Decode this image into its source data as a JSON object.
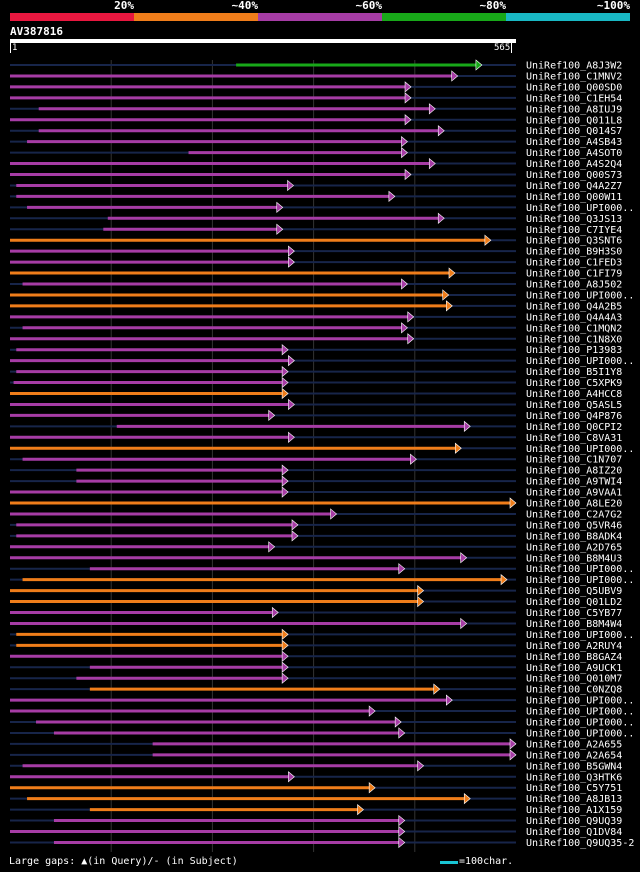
{
  "legend": {
    "items": [
      {
        "label": "20%",
        "color": "#e8173f"
      },
      {
        "label": "~40%",
        "color": "#ef7d1a"
      },
      {
        "label": "~60%",
        "color": "#a63ca5"
      },
      {
        "label": "~80%",
        "color": "#18a819"
      },
      {
        "label": "~100%",
        "color": "#19b8c4"
      }
    ]
  },
  "query": {
    "name": "AV387816",
    "start": "1",
    "end": "565"
  },
  "footer": {
    "gaps_text": "Large gaps: ▲(in Query)/- (in Subject)",
    "scale_text": "=100char."
  },
  "chart_data": {
    "type": "alignment-overview",
    "query_length": 565,
    "hits": [
      {
        "name": "UniRef100_A8J3W2",
        "color": "#18a819",
        "start": 253,
        "end": 527
      },
      {
        "name": "UniRef100_C1MNV2",
        "color": "#a63ca5",
        "start": 1,
        "end": 500
      },
      {
        "name": "UniRef100_Q00SD0",
        "color": "#a63ca5",
        "start": 1,
        "end": 448
      },
      {
        "name": "UniRef100_C1EH54",
        "color": "#a63ca5",
        "start": 1,
        "end": 448
      },
      {
        "name": "UniRef100_A8IUJ9",
        "color": "#a63ca5",
        "start": 33,
        "end": 475
      },
      {
        "name": "UniRef100_Q011L8",
        "color": "#a63ca5",
        "start": 1,
        "end": 448
      },
      {
        "name": "UniRef100_Q014S7",
        "color": "#a63ca5",
        "start": 33,
        "end": 485
      },
      {
        "name": "UniRef100_A4SB43",
        "color": "#a63ca5",
        "start": 20,
        "end": 444
      },
      {
        "name": "UniRef100_A4SOT0",
        "color": "#a63ca5",
        "start": 200,
        "end": 444
      },
      {
        "name": "UniRef100_A4S2Q4",
        "color": "#a63ca5",
        "start": 1,
        "end": 475
      },
      {
        "name": "UniRef100_Q00S73",
        "color": "#a63ca5",
        "start": 1,
        "end": 448
      },
      {
        "name": "UniRef100_Q4A2Z7",
        "color": "#a63ca5",
        "start": 8,
        "end": 317
      },
      {
        "name": "UniRef100_Q00W11",
        "color": "#a63ca5",
        "start": 8,
        "end": 430
      },
      {
        "name": "UniRef100_UPI000..",
        "color": "#a63ca5",
        "start": 20,
        "end": 305
      },
      {
        "name": "UniRef100_Q3JS13",
        "color": "#a63ca5",
        "start": 110,
        "end": 485
      },
      {
        "name": "UniRef100_C7IYE4",
        "color": "#a63ca5",
        "start": 105,
        "end": 305
      },
      {
        "name": "UniRef100_Q3SNT6",
        "color": "#ef7d1a",
        "start": 1,
        "end": 537
      },
      {
        "name": "UniRef100_B9H3S0",
        "color": "#a63ca5",
        "start": 1,
        "end": 318
      },
      {
        "name": "UniRef100_C1FED3",
        "color": "#a63ca5",
        "start": 1,
        "end": 318
      },
      {
        "name": "UniRef100_C1FI79",
        "color": "#ef7d1a",
        "start": 1,
        "end": 497
      },
      {
        "name": "UniRef100_A8J502",
        "color": "#a63ca5",
        "start": 15,
        "end": 444
      },
      {
        "name": "UniRef100_UPI000..",
        "color": "#ef7d1a",
        "start": 1,
        "end": 490
      },
      {
        "name": "UniRef100_Q4A2B5",
        "color": "#ef7d1a",
        "start": 1,
        "end": 494
      },
      {
        "name": "UniRef100_Q4A4A3",
        "color": "#a63ca5",
        "start": 1,
        "end": 451
      },
      {
        "name": "UniRef100_C1MQN2",
        "color": "#a63ca5",
        "start": 15,
        "end": 444
      },
      {
        "name": "UniRef100_C1N8X0",
        "color": "#a63ca5",
        "start": 1,
        "end": 451
      },
      {
        "name": "UniRef100_P13983",
        "color": "#a63ca5",
        "start": 8,
        "end": 311
      },
      {
        "name": "UniRef100_UPI000..",
        "color": "#a63ca5",
        "start": 1,
        "end": 318
      },
      {
        "name": "UniRef100_B5I1Y8",
        "color": "#a63ca5",
        "start": 8,
        "end": 311
      },
      {
        "name": "UniRef100_C5XPK9",
        "color": "#a63ca5",
        "start": 5,
        "end": 311
      },
      {
        "name": "UniRef100_A4HCC8",
        "color": "#ef7d1a",
        "start": 1,
        "end": 311
      },
      {
        "name": "UniRef100_Q5ASL5",
        "color": "#a63ca5",
        "start": 1,
        "end": 318
      },
      {
        "name": "UniRef100_Q4P876",
        "color": "#a63ca5",
        "start": 1,
        "end": 296
      },
      {
        "name": "UniRef100_Q0CPI2",
        "color": "#a63ca5",
        "start": 120,
        "end": 514
      },
      {
        "name": "UniRef100_C8VA31",
        "color": "#a63ca5",
        "start": 1,
        "end": 318
      },
      {
        "name": "UniRef100_UPI000..",
        "color": "#ef7d1a",
        "start": 1,
        "end": 504
      },
      {
        "name": "UniRef100_C1N707",
        "color": "#a63ca5",
        "start": 15,
        "end": 454
      },
      {
        "name": "UniRef100_A8IZ20",
        "color": "#a63ca5",
        "start": 75,
        "end": 311
      },
      {
        "name": "UniRef100_A9TWI4",
        "color": "#a63ca5",
        "start": 75,
        "end": 311
      },
      {
        "name": "UniRef100_A9VAA1",
        "color": "#a63ca5",
        "start": 1,
        "end": 311
      },
      {
        "name": "UniRef100_A8LE20",
        "color": "#ef7d1a",
        "start": 1,
        "end": 565
      },
      {
        "name": "UniRef100_C2A7G2",
        "color": "#a63ca5",
        "start": 1,
        "end": 365
      },
      {
        "name": "UniRef100_Q5VR46",
        "color": "#a63ca5",
        "start": 8,
        "end": 322
      },
      {
        "name": "UniRef100_B8ADK4",
        "color": "#a63ca5",
        "start": 8,
        "end": 322
      },
      {
        "name": "UniRef100_A2D765",
        "color": "#a63ca5",
        "start": 1,
        "end": 296
      },
      {
        "name": "UniRef100_B8M4U3",
        "color": "#a63ca5",
        "start": 1,
        "end": 510
      },
      {
        "name": "UniRef100_UPI000..",
        "color": "#a63ca5",
        "start": 90,
        "end": 441
      },
      {
        "name": "UniRef100_UPI000..",
        "color": "#ef7d1a",
        "start": 15,
        "end": 555
      },
      {
        "name": "UniRef100_Q5UBV9",
        "color": "#ef7d1a",
        "start": 1,
        "end": 462
      },
      {
        "name": "UniRef100_Q01LD2",
        "color": "#ef7d1a",
        "start": 1,
        "end": 462
      },
      {
        "name": "UniRef100_C5YB77",
        "color": "#a63ca5",
        "start": 1,
        "end": 300
      },
      {
        "name": "UniRef100_B8M4W4",
        "color": "#a63ca5",
        "start": 1,
        "end": 510
      },
      {
        "name": "UniRef100_UPI000..",
        "color": "#ef7d1a",
        "start": 8,
        "end": 311
      },
      {
        "name": "UniRef100_A2RUY4",
        "color": "#ef7d1a",
        "start": 8,
        "end": 311
      },
      {
        "name": "UniRef100_B8GAZ4",
        "color": "#a63ca5",
        "start": 1,
        "end": 311
      },
      {
        "name": "UniRef100_A9UCK1",
        "color": "#a63ca5",
        "start": 90,
        "end": 311
      },
      {
        "name": "UniRef100_Q010M7",
        "color": "#a63ca5",
        "start": 75,
        "end": 311
      },
      {
        "name": "UniRef100_C0NZQ8",
        "color": "#ef7d1a",
        "start": 90,
        "end": 480
      },
      {
        "name": "UniRef100_UPI000..",
        "color": "#a63ca5",
        "start": 1,
        "end": 494
      },
      {
        "name": "UniRef100_UPI000..",
        "color": "#a63ca5",
        "start": 1,
        "end": 408
      },
      {
        "name": "UniRef100_UPI000..",
        "color": "#a63ca5",
        "start": 30,
        "end": 437
      },
      {
        "name": "UniRef100_UPI000..",
        "color": "#a63ca5",
        "start": 50,
        "end": 441
      },
      {
        "name": "UniRef100_A2A655",
        "color": "#a63ca5",
        "start": 160,
        "end": 565
      },
      {
        "name": "UniRef100_A2A654",
        "color": "#a63ca5",
        "start": 160,
        "end": 565
      },
      {
        "name": "UniRef100_B5GWN4",
        "color": "#a63ca5",
        "start": 15,
        "end": 462
      },
      {
        "name": "UniRef100_Q3HTK6",
        "color": "#a63ca5",
        "start": 1,
        "end": 318
      },
      {
        "name": "UniRef100_C5Y751",
        "color": "#ef7d1a",
        "start": 1,
        "end": 408
      },
      {
        "name": "UniRef100_A8JB13",
        "color": "#ef7d1a",
        "start": 20,
        "end": 514
      },
      {
        "name": "UniRef100_A1X159",
        "color": "#ef7d1a",
        "start": 90,
        "end": 395
      },
      {
        "name": "UniRef100_Q9UQ39",
        "color": "#a63ca5",
        "start": 50,
        "end": 441
      },
      {
        "name": "UniRef100_Q1DV84",
        "color": "#a63ca5",
        "start": 1,
        "end": 441
      },
      {
        "name": "UniRef100_Q9UQ35-2",
        "color": "#a63ca5",
        "start": 50,
        "end": 441
      }
    ]
  }
}
